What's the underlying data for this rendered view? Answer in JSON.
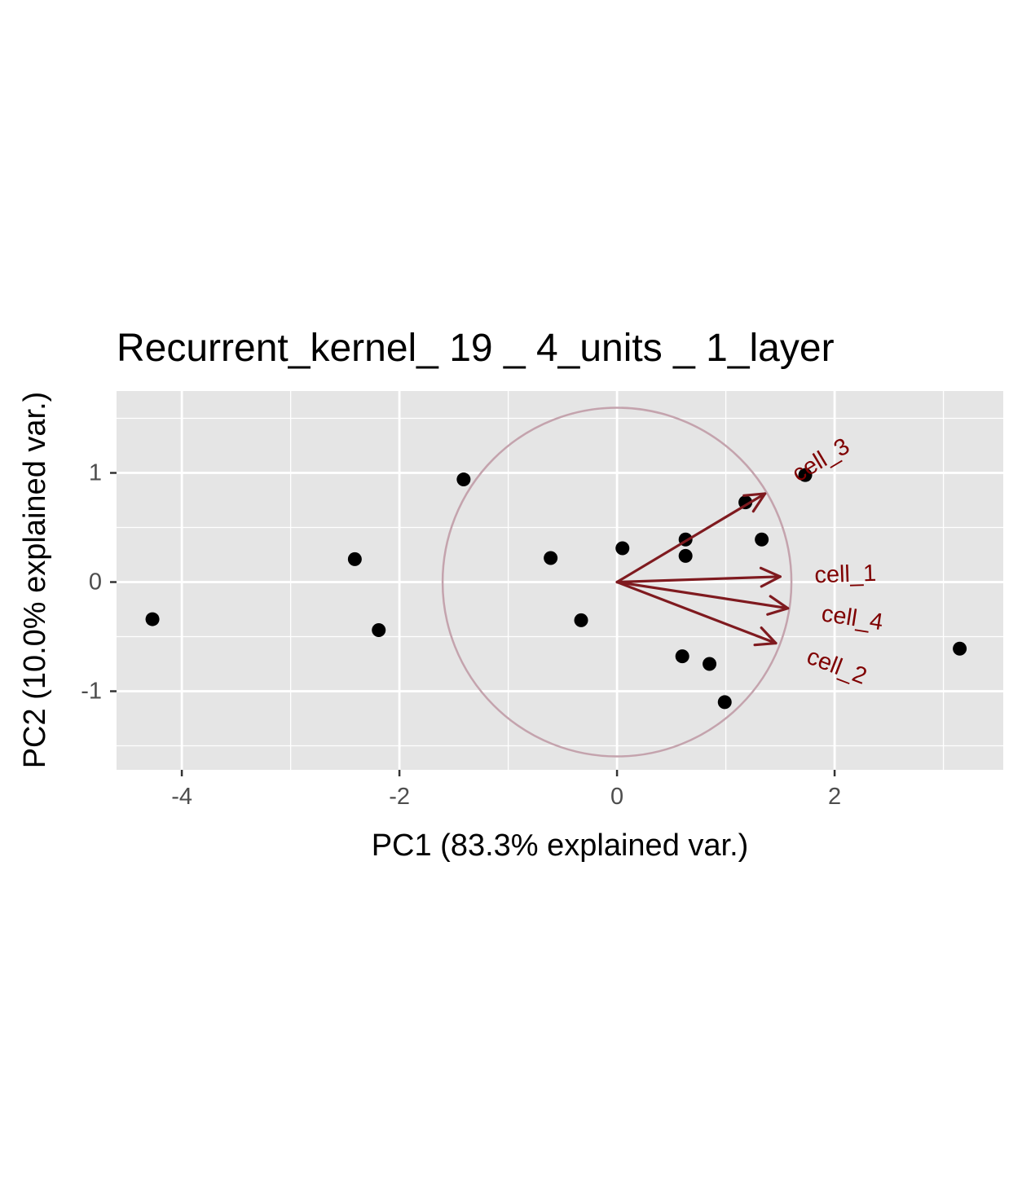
{
  "chart_data": {
    "type": "scatter",
    "title": "Recurrent_kernel_ 19 _ 4_units _ 1_layer",
    "xlabel": "PC1 (83.3% explained var.)",
    "ylabel": "PC2 (10.0% explained var.)",
    "xlim": [
      -4.6,
      3.55
    ],
    "ylim": [
      -1.72,
      1.75
    ],
    "x_ticks": [
      -4,
      -2,
      0,
      2
    ],
    "x_tick_labels": [
      "-4",
      "-2",
      "0",
      "2"
    ],
    "y_ticks": [
      -1,
      0,
      1
    ],
    "y_tick_labels": [
      "-1",
      "0",
      "1"
    ],
    "x_minor_ticks": [
      -3,
      -1,
      1,
      3
    ],
    "y_minor_ticks": [
      -1.5,
      -0.5,
      0.5,
      1.5
    ],
    "grid": true,
    "points": [
      {
        "x": -4.27,
        "y": -0.34
      },
      {
        "x": -2.41,
        "y": 0.21
      },
      {
        "x": -2.19,
        "y": -0.44
      },
      {
        "x": -1.41,
        "y": 0.94
      },
      {
        "x": -0.61,
        "y": 0.22
      },
      {
        "x": -0.33,
        "y": -0.35
      },
      {
        "x": 0.05,
        "y": 0.31
      },
      {
        "x": 0.6,
        "y": -0.68
      },
      {
        "x": 0.63,
        "y": 0.39
      },
      {
        "x": 0.63,
        "y": 0.24
      },
      {
        "x": 0.85,
        "y": -0.75
      },
      {
        "x": 0.99,
        "y": -1.1
      },
      {
        "x": 1.18,
        "y": 0.73
      },
      {
        "x": 1.33,
        "y": 0.39
      },
      {
        "x": 1.73,
        "y": 0.98
      },
      {
        "x": 3.15,
        "y": -0.61
      }
    ],
    "circle": {
      "center": [
        0,
        0
      ],
      "radius": 1.6
    },
    "loadings": [
      {
        "name": "cell_1",
        "x": 1.5,
        "y": 0.05
      },
      {
        "name": "cell_2",
        "x": 1.46,
        "y": -0.56
      },
      {
        "name": "cell_3",
        "x": 1.36,
        "y": 0.81
      },
      {
        "name": "cell_4",
        "x": 1.57,
        "y": -0.24
      }
    ],
    "colors": {
      "panel_background": "#e5e5e5",
      "grid": "#ffffff",
      "points": "#000000",
      "arrows": "#7f1a1f",
      "arrow_labels": "#7f0000",
      "circle": "#c4a3ad",
      "tick_labels": "#4d4d4d"
    }
  }
}
